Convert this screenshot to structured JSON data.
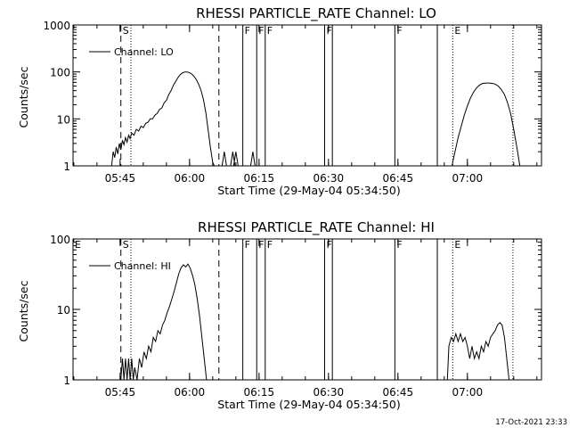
{
  "chart_data": [
    {
      "type": "line",
      "title": "RHESSI PARTICLE_RATE Channel: LO",
      "xlabel": "Start Time (29-May-04 05:34:50)",
      "ylabel": "Counts/sec",
      "yscale": "log",
      "ylim": [
        1,
        1000
      ],
      "xlim": [
        "05:34:50",
        "07:16:00"
      ],
      "x_ticks": [
        "05:45",
        "06:00",
        "06:15",
        "06:30",
        "06:45",
        "07:00"
      ],
      "y_ticks": [
        "1",
        "10",
        "100",
        "1000"
      ],
      "legend": {
        "position": "top-left",
        "label": "Channel: LO"
      },
      "series": [
        {
          "name": "Channel: LO",
          "points": [
            [
              "05:43:10",
              1
            ],
            [
              "05:43:30",
              2
            ],
            [
              "05:43:50",
              1.5
            ],
            [
              "05:44:10",
              2.5
            ],
            [
              "05:44:30",
              1.8
            ],
            [
              "05:44:50",
              3
            ],
            [
              "05:45:10",
              2.2
            ],
            [
              "05:45:30",
              3.5
            ],
            [
              "05:45:50",
              2.8
            ],
            [
              "05:46:10",
              4
            ],
            [
              "05:46:30",
              3.2
            ],
            [
              "05:46:50",
              4.5
            ],
            [
              "05:47:10",
              3.8
            ],
            [
              "05:47:30",
              5
            ],
            [
              "05:48:00",
              4.5
            ],
            [
              "05:48:30",
              6
            ],
            [
              "05:49:00",
              5.5
            ],
            [
              "05:49:30",
              7
            ],
            [
              "05:50:00",
              6.5
            ],
            [
              "05:50:30",
              8
            ],
            [
              "05:51:00",
              8.5
            ],
            [
              "05:51:30",
              10
            ],
            [
              "05:52:00",
              10
            ],
            [
              "05:52:30",
              12
            ],
            [
              "05:53:00",
              13
            ],
            [
              "05:53:30",
              16
            ],
            [
              "05:54:00",
              17
            ],
            [
              "05:54:30",
              22
            ],
            [
              "05:55:00",
              25
            ],
            [
              "05:55:30",
              33
            ],
            [
              "05:56:00",
              40
            ],
            [
              "05:56:30",
              52
            ],
            [
              "05:57:00",
              63
            ],
            [
              "05:57:30",
              76
            ],
            [
              "05:58:00",
              88
            ],
            [
              "05:58:30",
              96
            ],
            [
              "05:59:00",
              100
            ],
            [
              "05:59:30",
              100
            ],
            [
              "06:00:00",
              96
            ],
            [
              "06:00:30",
              90
            ],
            [
              "06:01:00",
              80
            ],
            [
              "06:01:30",
              68
            ],
            [
              "06:02:00",
              54
            ],
            [
              "06:02:30",
              40
            ],
            [
              "06:03:00",
              26
            ],
            [
              "06:03:30",
              14
            ],
            [
              "06:04:00",
              6
            ],
            [
              "06:04:30",
              2.5
            ],
            [
              "06:05:00",
              1.2
            ],
            [
              "06:05:20",
              1
            ]
          ]
        }
      ],
      "extra_spikes": [
        [
          "06:07:30",
          2
        ],
        [
          "06:09:20",
          2
        ],
        [
          "06:10:00",
          2
        ],
        [
          "06:13:40",
          2
        ]
      ],
      "second_peak": [
        [
          "06:56:40",
          1
        ],
        [
          "06:57:20",
          2
        ],
        [
          "06:58:00",
          4
        ],
        [
          "06:58:40",
          7
        ],
        [
          "06:59:20",
          12
        ],
        [
          "07:00:00",
          19
        ],
        [
          "07:00:40",
          28
        ],
        [
          "07:01:20",
          37
        ],
        [
          "07:02:00",
          46
        ],
        [
          "07:02:40",
          53
        ],
        [
          "07:03:20",
          57
        ],
        [
          "07:04:00",
          58
        ],
        [
          "07:04:40",
          58
        ],
        [
          "07:05:20",
          57
        ],
        [
          "07:06:00",
          55
        ],
        [
          "07:06:40",
          50
        ],
        [
          "07:07:20",
          42
        ],
        [
          "07:08:00",
          33
        ],
        [
          "07:08:40",
          22
        ],
        [
          "07:09:20",
          13
        ],
        [
          "07:10:00",
          6
        ],
        [
          "07:10:40",
          2.5
        ],
        [
          "07:11:20",
          1
        ]
      ],
      "markers": [
        {
          "time": "05:45:10",
          "style": "dashed",
          "label": "S"
        },
        {
          "time": "05:47:20",
          "style": "dotted",
          "label": ""
        },
        {
          "time": "06:06:20",
          "style": "dashed",
          "label": ""
        },
        {
          "time": "06:11:30",
          "style": "solid",
          "label": "F"
        },
        {
          "time": "06:14:30",
          "style": "solid",
          "label": "F"
        },
        {
          "time": "06:16:20",
          "style": "solid",
          "label": "F"
        },
        {
          "time": "06:29:10",
          "style": "solid",
          "label": "F"
        },
        {
          "time": "06:30:50",
          "style": "solid",
          "label": ""
        },
        {
          "time": "06:44:20",
          "style": "solid",
          "label": "F"
        },
        {
          "time": "06:53:30",
          "style": "solid",
          "label": ""
        },
        {
          "time": "06:56:50",
          "style": "dotted",
          "label": "E"
        },
        {
          "time": "07:09:50",
          "style": "dotted",
          "label": ""
        }
      ]
    },
    {
      "type": "line",
      "title": "RHESSI PARTICLE_RATE Channel: HI",
      "xlabel": "Start Time (29-May-04 05:34:50)",
      "ylabel": "Counts/sec",
      "yscale": "log",
      "ylim": [
        1,
        100
      ],
      "xlim": [
        "05:34:50",
        "07:16:00"
      ],
      "x_ticks": [
        "05:45",
        "06:00",
        "06:15",
        "06:30",
        "06:45",
        "07:00"
      ],
      "y_ticks": [
        "1",
        "10",
        "100"
      ],
      "legend": {
        "position": "top-left",
        "label": "Channel: HI"
      },
      "series": [
        {
          "name": "Channel: HI",
          "points": [
            [
              "05:45:10",
              1
            ],
            [
              "05:45:30",
              2
            ],
            [
              "05:45:50",
              1
            ],
            [
              "05:46:10",
              2
            ],
            [
              "05:46:30",
              1
            ],
            [
              "05:46:50",
              2
            ],
            [
              "05:47:10",
              1
            ],
            [
              "05:47:30",
              2
            ],
            [
              "05:47:50",
              1
            ],
            [
              "05:48:10",
              1.5
            ],
            [
              "05:48:40",
              1
            ],
            [
              "05:49:10",
              2
            ],
            [
              "05:49:40",
              1.5
            ],
            [
              "05:50:10",
              2.5
            ],
            [
              "05:50:40",
              2
            ],
            [
              "05:51:10",
              3
            ],
            [
              "05:51:40",
              2.5
            ],
            [
              "05:52:10",
              4
            ],
            [
              "05:52:40",
              3.5
            ],
            [
              "05:53:10",
              5
            ],
            [
              "05:53:40",
              4.5
            ],
            [
              "05:54:10",
              6
            ],
            [
              "05:54:40",
              7
            ],
            [
              "05:55:10",
              9
            ],
            [
              "05:55:40",
              11
            ],
            [
              "05:56:10",
              14
            ],
            [
              "05:56:40",
              18
            ],
            [
              "05:57:10",
              24
            ],
            [
              "05:57:40",
              32
            ],
            [
              "05:58:10",
              39
            ],
            [
              "05:58:40",
              43
            ],
            [
              "05:59:10",
              40
            ],
            [
              "05:59:40",
              44
            ],
            [
              "06:00:10",
              38
            ],
            [
              "06:00:40",
              30
            ],
            [
              "06:01:10",
              22
            ],
            [
              "06:01:40",
              14
            ],
            [
              "06:02:10",
              8
            ],
            [
              "06:02:40",
              4
            ],
            [
              "06:03:10",
              2
            ],
            [
              "06:03:40",
              1
            ]
          ]
        }
      ],
      "second_peak": [
        [
          "06:55:40",
          1
        ],
        [
          "06:56:00",
          3
        ],
        [
          "06:56:30",
          4
        ],
        [
          "06:57:00",
          3.5
        ],
        [
          "06:57:30",
          4.5
        ],
        [
          "06:58:00",
          3.5
        ],
        [
          "06:58:30",
          4.5
        ],
        [
          "06:59:00",
          3.5
        ],
        [
          "06:59:30",
          4
        ],
        [
          "07:00:00",
          3
        ],
        [
          "07:00:30",
          2
        ],
        [
          "07:01:00",
          3
        ],
        [
          "07:01:30",
          2
        ],
        [
          "07:02:00",
          2.5
        ],
        [
          "07:02:30",
          2
        ],
        [
          "07:03:00",
          3
        ],
        [
          "07:03:30",
          2.5
        ],
        [
          "07:04:00",
          3.5
        ],
        [
          "07:04:30",
          3
        ],
        [
          "07:05:00",
          4
        ],
        [
          "07:05:30",
          4.5
        ],
        [
          "07:06:00",
          5
        ],
        [
          "07:06:30",
          6
        ],
        [
          "07:07:00",
          6.5
        ],
        [
          "07:07:30",
          6
        ],
        [
          "07:08:00",
          4
        ],
        [
          "07:08:30",
          2
        ],
        [
          "07:09:00",
          1
        ]
      ],
      "markers": [
        {
          "time": "05:34:50",
          "style": "none",
          "label": "E"
        },
        {
          "time": "05:45:10",
          "style": "dashed",
          "label": "S"
        },
        {
          "time": "05:47:20",
          "style": "dotted",
          "label": ""
        },
        {
          "time": "06:06:20",
          "style": "dashed",
          "label": ""
        },
        {
          "time": "06:11:30",
          "style": "solid",
          "label": "F"
        },
        {
          "time": "06:14:30",
          "style": "solid",
          "label": "F"
        },
        {
          "time": "06:16:20",
          "style": "solid",
          "label": "F"
        },
        {
          "time": "06:29:10",
          "style": "solid",
          "label": "F"
        },
        {
          "time": "06:30:50",
          "style": "solid",
          "label": ""
        },
        {
          "time": "06:44:20",
          "style": "solid",
          "label": "F"
        },
        {
          "time": "06:53:30",
          "style": "solid",
          "label": ""
        },
        {
          "time": "06:56:50",
          "style": "dotted",
          "label": "E"
        },
        {
          "time": "07:09:50",
          "style": "dotted",
          "label": ""
        }
      ]
    }
  ],
  "timestamp": "17-Oct-2021 23:33"
}
